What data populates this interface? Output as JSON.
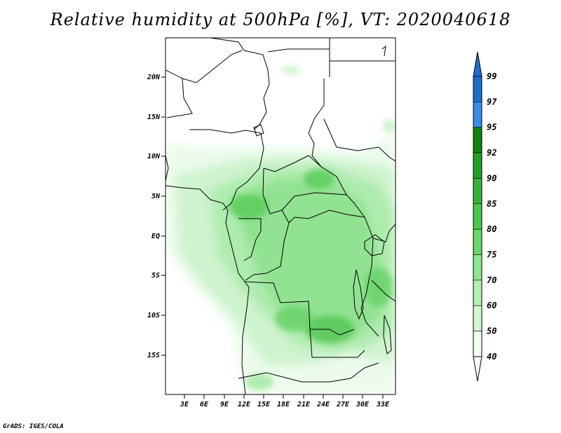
{
  "title": "Relative humidity at 500hPa [%], VT: 2020040618",
  "footer": "GrADS: IGES/COLA",
  "map": {
    "lat_labels": [
      "20N",
      "15N",
      "10N",
      "5N",
      "EQ",
      "5S",
      "10S",
      "15S"
    ],
    "lon_labels": [
      "3E",
      "6E",
      "9E",
      "12E",
      "15E",
      "18E",
      "21E",
      "24E",
      "27E",
      "30E",
      "33E"
    ]
  },
  "colorbar": {
    "levels": [
      "99",
      "97",
      "95",
      "92",
      "90",
      "85",
      "80",
      "75",
      "70",
      "60",
      "50",
      "40"
    ],
    "colors": [
      "#1e6ecd",
      "#3c8ce6",
      "#0f820f",
      "#23a023",
      "#37b437",
      "#4bc84b",
      "#69d769",
      "#8ee68e",
      "#b4f0b4",
      "#d2f8d2",
      "#f0fff0"
    ]
  }
}
